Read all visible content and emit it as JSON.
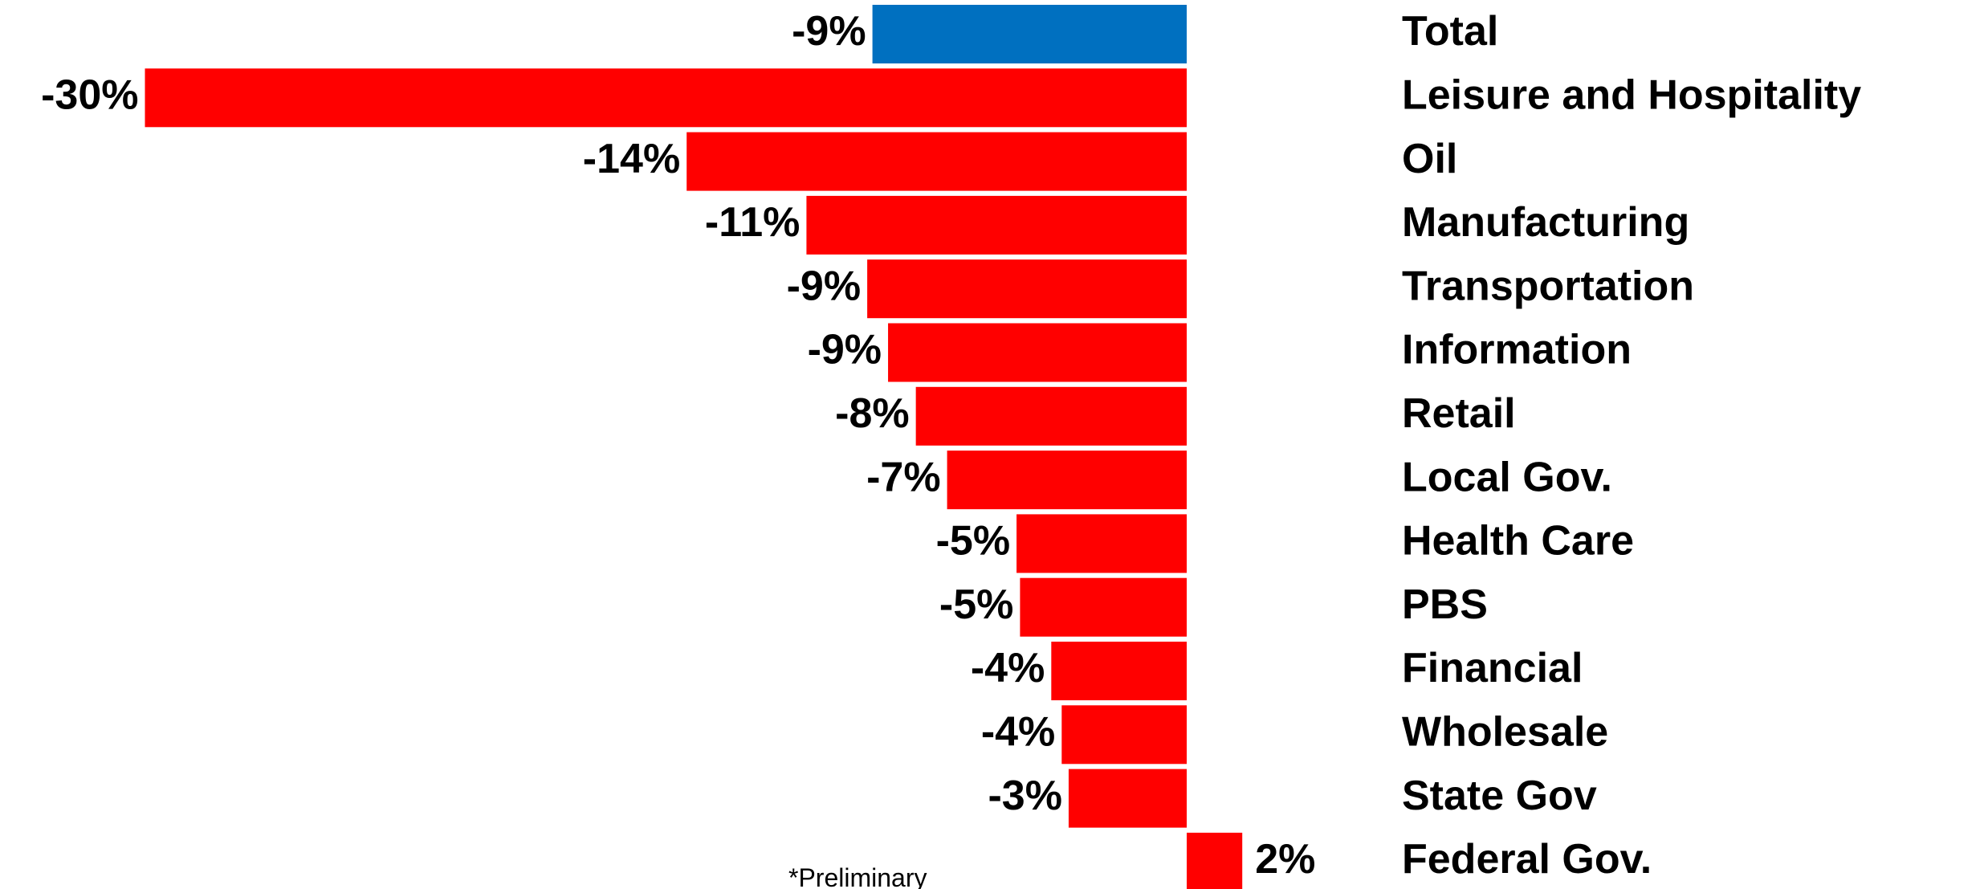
{
  "chart_data": {
    "type": "bar",
    "orientation": "horizontal",
    "categories": [
      "Total",
      "Leisure and Hospitality",
      "Oil",
      "Manufacturing",
      "Transportation",
      "Information",
      "Retail",
      "Local Gov.",
      "Health Care",
      "PBS",
      "Financial",
      "Wholesale",
      "State Gov",
      "Federal Gov."
    ],
    "values": [
      -9.05,
      -30,
      -14.4,
      -10.95,
      -9.2,
      -8.6,
      -7.8,
      -6.9,
      -4.9,
      -4.8,
      -3.9,
      -3.6,
      -3.4,
      1.6
    ],
    "value_labels": [
      "-9%",
      "-30%",
      "-14%",
      "-11%",
      "-9%",
      "-9%",
      "-8%",
      "-7%",
      "-5%",
      "-5%",
      "-4%",
      "-4%",
      "-3%",
      "2%"
    ],
    "colors": [
      "#0070c0",
      "#ff0000",
      "#ff0000",
      "#ff0000",
      "#ff0000",
      "#ff0000",
      "#ff0000",
      "#ff0000",
      "#ff0000",
      "#ff0000",
      "#ff0000",
      "#ff0000",
      "#ff0000",
      "#ff0000"
    ],
    "note": "*Preliminary"
  }
}
